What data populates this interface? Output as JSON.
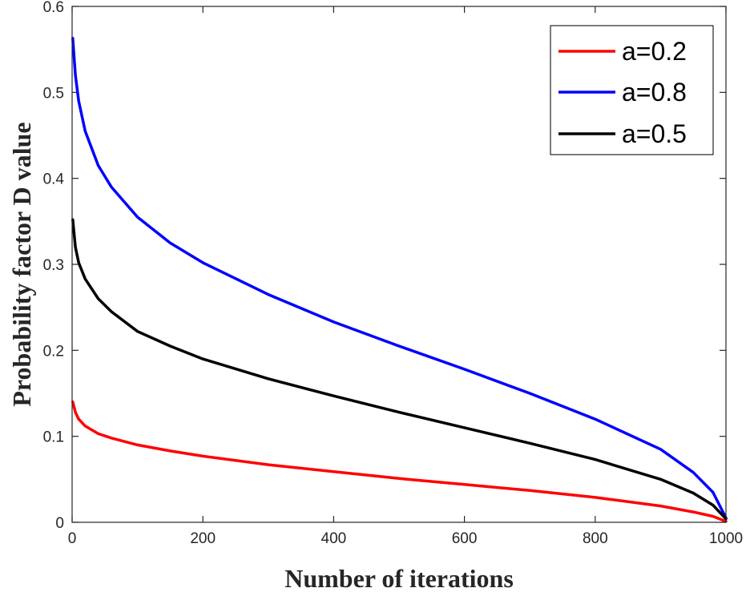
{
  "chart_data": {
    "type": "line",
    "title": "",
    "xlabel": "Number of iterations",
    "ylabel": "Probability factor D value",
    "xlim": [
      0,
      1000
    ],
    "ylim": [
      0,
      0.6
    ],
    "xticks": [
      0,
      200,
      400,
      600,
      800,
      1000
    ],
    "xtick_labels": [
      "0",
      "200",
      "400",
      "600",
      "800",
      "1000"
    ],
    "yticks": [
      0,
      0.1,
      0.2,
      0.3,
      0.4,
      0.5,
      0.6
    ],
    "ytick_labels": [
      "0",
      "0.1",
      "0.2",
      "0.3",
      "0.4",
      "0.5",
      "0.6"
    ],
    "grid": false,
    "legend_position": "top-right",
    "x": [
      1,
      5,
      10,
      20,
      40,
      60,
      100,
      150,
      200,
      300,
      400,
      500,
      600,
      700,
      800,
      900,
      950,
      980,
      1000
    ],
    "series": [
      {
        "name": "a=0.2",
        "color": "#ff0000",
        "values": [
          0.14,
          0.128,
          0.12,
          0.112,
          0.103,
          0.098,
          0.09,
          0.083,
          0.077,
          0.067,
          0.059,
          0.051,
          0.044,
          0.037,
          0.029,
          0.019,
          0.012,
          0.007,
          0.001
        ]
      },
      {
        "name": "a=0.8",
        "color": "#0000ff",
        "values": [
          0.563,
          0.52,
          0.49,
          0.455,
          0.415,
          0.39,
          0.355,
          0.325,
          0.302,
          0.265,
          0.233,
          0.205,
          0.178,
          0.15,
          0.12,
          0.085,
          0.058,
          0.035,
          0.005
        ]
      },
      {
        "name": "a=0.5",
        "color": "#000000",
        "values": [
          0.352,
          0.32,
          0.302,
          0.283,
          0.26,
          0.245,
          0.222,
          0.205,
          0.19,
          0.167,
          0.147,
          0.128,
          0.11,
          0.092,
          0.073,
          0.05,
          0.034,
          0.02,
          0.004
        ]
      }
    ]
  }
}
